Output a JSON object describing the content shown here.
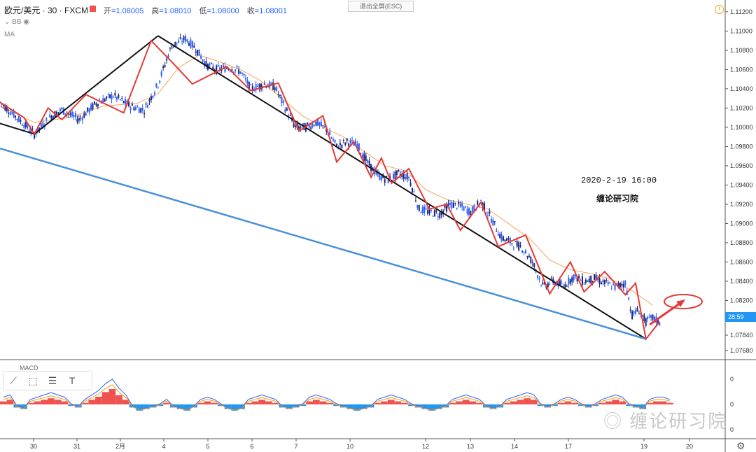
{
  "header": {
    "symbol": "欧元/美元 · 30 · FXCM",
    "ohlc": {
      "open_label": "开",
      "open": "1.08005",
      "high_label": "高",
      "high": "1.08010",
      "low_label": "低",
      "low": "1.08000",
      "close_label": "收",
      "close": "1.08001"
    },
    "exit_fullscreen": "退出全屏(ESC)",
    "indicator_bb": "BB",
    "indicator_ma": "MA"
  },
  "annotations": {
    "datetime": "2020-2-19 16:00",
    "studio": "缠论研习院",
    "watermark": "缠论研习院"
  },
  "macd_label": "MACD",
  "price_tag": "28:59",
  "colors": {
    "up": "#2962ff",
    "down": "#1a237e",
    "zigzag": "#e53935",
    "trend": "#111111",
    "channel": "#4a90d9",
    "ma": "#f4a460",
    "macd_pos": "#ef5350",
    "macd_neg": "#2196f3"
  },
  "chart_data": {
    "type": "line",
    "title": "",
    "y_axis": {
      "ylim": [
        1.076,
        1.1125
      ],
      "ticks": [
        "1.11200",
        "1.11000",
        "1.10800",
        "1.10600",
        "1.10400",
        "1.10200",
        "1.10000",
        "1.09800",
        "1.09600",
        "1.09400",
        "1.09200",
        "1.09000",
        "1.08800",
        "1.08600",
        "1.08400",
        "1.08200",
        "1.08000",
        "1.07840",
        "1.07680"
      ]
    },
    "x_axis": {
      "labels": [
        "30",
        "31",
        "2月",
        "4",
        "5",
        "6",
        "7",
        "10",
        "12",
        "13",
        "14",
        "17",
        "19",
        "20"
      ]
    },
    "price_series": [
      [
        0,
        1.1026
      ],
      [
        5,
        1.101
      ],
      [
        10,
        1.0993
      ],
      [
        15,
        1.1012
      ],
      [
        18,
        1.1018
      ],
      [
        23,
        1.1008
      ],
      [
        28,
        1.1025
      ],
      [
        33,
        1.1033
      ],
      [
        38,
        1.1022
      ],
      [
        42,
        1.1018
      ],
      [
        46,
        1.1045
      ],
      [
        50,
        1.1085
      ],
      [
        54,
        1.1092
      ],
      [
        57,
        1.1082
      ],
      [
        60,
        1.1065
      ],
      [
        63,
        1.106
      ],
      [
        67,
        1.1062
      ],
      [
        70,
        1.1058
      ],
      [
        73,
        1.104
      ],
      [
        77,
        1.1045
      ],
      [
        80,
        1.1042
      ],
      [
        83,
        1.102
      ],
      [
        86,
        1.1
      ],
      [
        89,
        1.1
      ],
      [
        92,
        1.1005
      ],
      [
        95,
        1.0998
      ],
      [
        98,
        1.098
      ],
      [
        101,
        1.0985
      ],
      [
        104,
        1.0982
      ],
      [
        107,
        1.0963
      ],
      [
        110,
        1.095
      ],
      [
        113,
        1.0945
      ],
      [
        116,
        1.0952
      ],
      [
        119,
        1.0948
      ],
      [
        122,
        1.0915
      ],
      [
        125,
        1.0912
      ],
      [
        128,
        1.091
      ],
      [
        131,
        1.092
      ],
      [
        134,
        1.0918
      ],
      [
        137,
        1.0912
      ],
      [
        140,
        1.0923
      ],
      [
        143,
        1.0905
      ],
      [
        146,
        1.0885
      ],
      [
        149,
        1.088
      ],
      [
        152,
        1.0875
      ],
      [
        155,
        1.086
      ],
      [
        158,
        1.0835
      ],
      [
        161,
        1.084
      ],
      [
        164,
        1.0835
      ],
      [
        167,
        1.0845
      ],
      [
        170,
        1.084
      ],
      [
        173,
        1.0843
      ],
      [
        176,
        1.0838
      ],
      [
        179,
        1.0834
      ],
      [
        182,
        1.0838
      ],
      [
        184,
        1.0805
      ],
      [
        186,
        1.081
      ],
      [
        188,
        1.0798
      ],
      [
        190,
        1.0802
      ],
      [
        192,
        1.0797
      ]
    ],
    "ma_series": [
      [
        0,
        1.1022
      ],
      [
        10,
        1.1005
      ],
      [
        20,
        1.101
      ],
      [
        30,
        1.1022
      ],
      [
        40,
        1.1025
      ],
      [
        46,
        1.1035
      ],
      [
        52,
        1.1062
      ],
      [
        58,
        1.1075
      ],
      [
        64,
        1.1068
      ],
      [
        70,
        1.106
      ],
      [
        76,
        1.1048
      ],
      [
        82,
        1.103
      ],
      [
        88,
        1.1012
      ],
      [
        94,
        1.1
      ],
      [
        100,
        1.099
      ],
      [
        106,
        1.0975
      ],
      [
        112,
        1.096
      ],
      [
        118,
        1.0955
      ],
      [
        124,
        1.0935
      ],
      [
        130,
        1.0925
      ],
      [
        136,
        1.092
      ],
      [
        142,
        1.0915
      ],
      [
        148,
        1.09
      ],
      [
        154,
        1.0885
      ],
      [
        160,
        1.0862
      ],
      [
        166,
        1.0852
      ],
      [
        172,
        1.0848
      ],
      [
        178,
        1.0842
      ],
      [
        184,
        1.083
      ],
      [
        190,
        1.0815
      ]
    ],
    "zigzag": [
      [
        0,
        1.1026
      ],
      [
        7,
        1.101
      ],
      [
        10,
        1.0993
      ],
      [
        14,
        1.102
      ],
      [
        18,
        1.1008
      ],
      [
        25,
        1.1034
      ],
      [
        36,
        1.1015
      ],
      [
        44,
        1.109
      ],
      [
        50,
        1.1068
      ],
      [
        56,
        1.1045
      ],
      [
        66,
        1.1063
      ],
      [
        73,
        1.1038
      ],
      [
        81,
        1.1046
      ],
      [
        87,
        1.0996
      ],
      [
        94,
        1.1012
      ],
      [
        98,
        1.0964
      ],
      [
        103,
        1.0985
      ],
      [
        108,
        1.0948
      ],
      [
        111,
        1.0968
      ],
      [
        114,
        1.0942
      ],
      [
        119,
        1.0957
      ],
      [
        125,
        1.0915
      ],
      [
        130,
        1.092
      ],
      [
        134,
        1.0893
      ],
      [
        140,
        1.0922
      ],
      [
        145,
        1.0876
      ],
      [
        153,
        1.0888
      ],
      [
        160,
        1.0827
      ],
      [
        166,
        1.086
      ],
      [
        170,
        1.0829
      ],
      [
        176,
        1.085
      ],
      [
        182,
        1.0826
      ],
      [
        185,
        1.0838
      ],
      [
        188,
        1.078
      ],
      [
        192,
        1.0798
      ]
    ],
    "trendlines": [
      {
        "from": [
          0,
          1.1004
        ],
        "to": [
          10,
          1.0993
        ]
      },
      {
        "from": [
          10,
          1.0993
        ],
        "to": [
          46,
          1.1095
        ]
      },
      {
        "from": [
          46,
          1.1095
        ],
        "to": [
          188,
          1.078
        ]
      }
    ],
    "channel_line": {
      "from": [
        0,
        1.0978
      ],
      "to": [
        188,
        1.078
      ]
    },
    "macd": {
      "ticks": [
        "0",
        "0",
        "0"
      ],
      "histogram": [
        2,
        3,
        -2,
        -3,
        1,
        2,
        3,
        4,
        3,
        2,
        -1,
        -2,
        1,
        3,
        5,
        8,
        10,
        6,
        3,
        -2,
        -4,
        -3,
        -2,
        -1,
        1,
        -2,
        -3,
        -4,
        -2,
        1,
        2,
        1,
        -1,
        -3,
        -4,
        -3,
        1,
        2,
        3,
        2,
        1,
        -2,
        -3,
        -2,
        -1,
        2,
        3,
        2,
        1,
        -1,
        -2,
        -3,
        -4,
        -3,
        -2,
        1,
        2,
        3,
        2,
        1,
        -1,
        -2,
        -3,
        -4,
        -3,
        -2,
        1,
        2,
        3,
        2,
        1,
        -2,
        -3,
        -2,
        1,
        2,
        3,
        4,
        3,
        -1,
        -2,
        -1,
        1,
        2,
        1,
        -1,
        -2,
        -1,
        1,
        2,
        3,
        2,
        -1,
        -2,
        -3,
        1,
        2,
        2,
        1
      ]
    }
  }
}
